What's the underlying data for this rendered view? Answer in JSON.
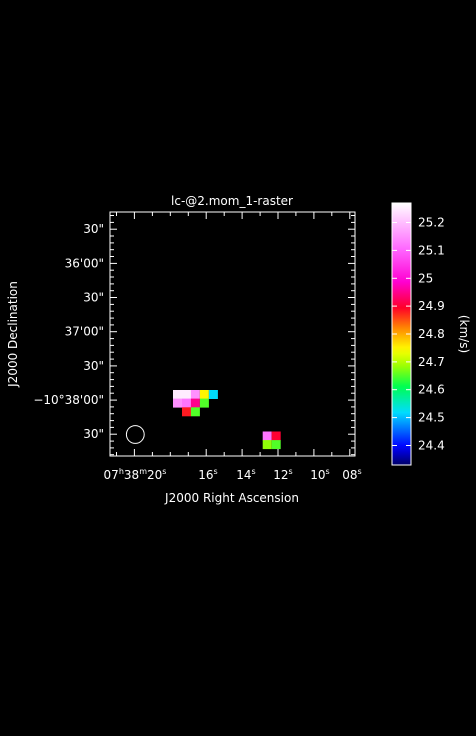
{
  "chart_data": {
    "type": "heatmap",
    "title": "lc-@2.mom_1-raster",
    "xlabel": "J2000 Right Ascension",
    "ylabel": "J2000 Declination",
    "x_ticks": [
      {
        "h": "07",
        "m": "38",
        "s": "20",
        "full": true
      },
      {
        "s": "16"
      },
      {
        "s": "14"
      },
      {
        "s": "12"
      },
      {
        "s": "10"
      },
      {
        "s": "08"
      }
    ],
    "y_ticks": [
      {
        "text": "30\""
      },
      {
        "text": "36'00\""
      },
      {
        "text": "30\""
      },
      {
        "text": "37'00\""
      },
      {
        "text": "30\""
      },
      {
        "text": "−10°38'00\""
      },
      {
        "text": "30\""
      }
    ],
    "x_label_sec": [
      20,
      16,
      14,
      12,
      10,
      8
    ],
    "y_label_arcsec": [
      90,
      60,
      30,
      0,
      -30,
      -60,
      -90
    ],
    "x_range_sec": [
      21.36,
      7.71
    ],
    "y_range_arcsec": [
      105.1,
      -109.1
    ],
    "beam": {
      "ra_sec": 19.95,
      "dec_arcsec": -90.2,
      "diameter_arcsec": 15.6
    },
    "pixels": [
      {
        "ra_sec": 17.6,
        "dec_arcsec": -55.1,
        "value": 25.25
      },
      {
        "ra_sec": 17.1,
        "dec_arcsec": -55.1,
        "value": 25.25
      },
      {
        "ra_sec": 16.6,
        "dec_arcsec": -55.1,
        "value": 25.15
      },
      {
        "ra_sec": 16.1,
        "dec_arcsec": -55.1,
        "value": 24.75
      },
      {
        "ra_sec": 15.6,
        "dec_arcsec": -55.1,
        "value": 24.52
      },
      {
        "ra_sec": 17.6,
        "dec_arcsec": -62.7,
        "value": 25.15
      },
      {
        "ra_sec": 17.1,
        "dec_arcsec": -62.7,
        "value": 25.12
      },
      {
        "ra_sec": 16.6,
        "dec_arcsec": -62.7,
        "value": 24.95
      },
      {
        "ra_sec": 16.1,
        "dec_arcsec": -62.7,
        "value": 24.65
      },
      {
        "ra_sec": 17.1,
        "dec_arcsec": -70.3,
        "value": 24.88
      },
      {
        "ra_sec": 16.6,
        "dec_arcsec": -70.3,
        "value": 24.65
      },
      {
        "ra_sec": 12.6,
        "dec_arcsec": -91.5,
        "value": 25.12
      },
      {
        "ra_sec": 12.1,
        "dec_arcsec": -91.5,
        "value": 24.9
      },
      {
        "ra_sec": 12.6,
        "dec_arcsec": -99.1,
        "value": 24.68
      },
      {
        "ra_sec": 12.1,
        "dec_arcsec": -99.1,
        "value": 24.65
      }
    ],
    "colorbar": {
      "label": "(km/s)",
      "vmin": 24.33,
      "vmax": 25.27,
      "ticks": [
        "25.2",
        "25.1",
        "25",
        "24.9",
        "24.8",
        "24.7",
        "24.6",
        "24.5",
        "24.4"
      ],
      "tick_values": [
        25.2,
        25.1,
        25.0,
        24.9,
        24.8,
        24.7,
        24.6,
        24.5,
        24.4
      ]
    }
  }
}
